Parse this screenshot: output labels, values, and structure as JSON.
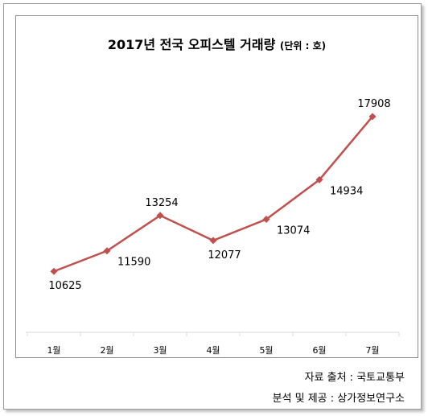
{
  "chart_data": {
    "type": "line",
    "title": "2017년 전국 오피스텔 거래량",
    "title_unit": "(단위 : 호)",
    "categories": [
      "1월",
      "2월",
      "3월",
      "4월",
      "5월",
      "6월",
      "7월"
    ],
    "series": [
      {
        "values": [
          10625,
          11590,
          13254,
          12077,
          13074,
          14934,
          17908
        ]
      }
    ],
    "data_labels": [
      "10625",
      "11590",
      "13254",
      "12077",
      "13074",
      "14934",
      "17908"
    ],
    "ylim": [
      7000,
      19000
    ],
    "grid": false,
    "legend": "none",
    "colors": {
      "line": "#c0504d",
      "marker": "#c0504d",
      "axis": "#d9d9d9"
    }
  },
  "sources": {
    "data_source": "자료 출처 : 국토교통부",
    "analysis": "분석 및 제공 : 상가정보연구소"
  }
}
